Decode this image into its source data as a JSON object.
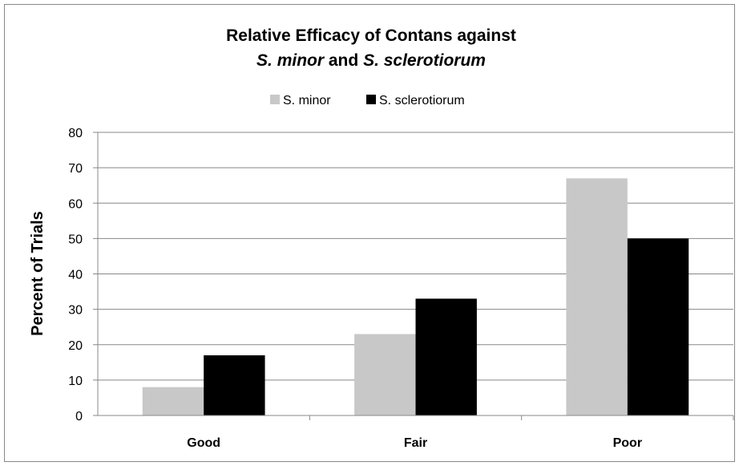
{
  "chart_data": {
    "type": "bar",
    "title": {
      "line1": "Relative Efficacy of Contans against",
      "line2": [
        {
          "text": "S. minor",
          "italic": true
        },
        {
          "text": " and ",
          "italic": false
        },
        {
          "text": "S. sclerotiorum",
          "italic": true
        }
      ]
    },
    "xlabel": "",
    "ylabel": "Percent of Trials",
    "categories": [
      "Good",
      "Fair",
      "Poor"
    ],
    "series": [
      {
        "name": "S. minor",
        "color": "#c8c8c8",
        "values": [
          8,
          23,
          67
        ]
      },
      {
        "name": "S. sclerotiorum",
        "color": "#000000",
        "values": [
          17,
          33,
          50
        ]
      }
    ],
    "ylim": [
      0,
      80
    ],
    "yticks": [
      0,
      10,
      20,
      30,
      40,
      50,
      60,
      70,
      80
    ],
    "grid": true,
    "legend_position": "top"
  }
}
